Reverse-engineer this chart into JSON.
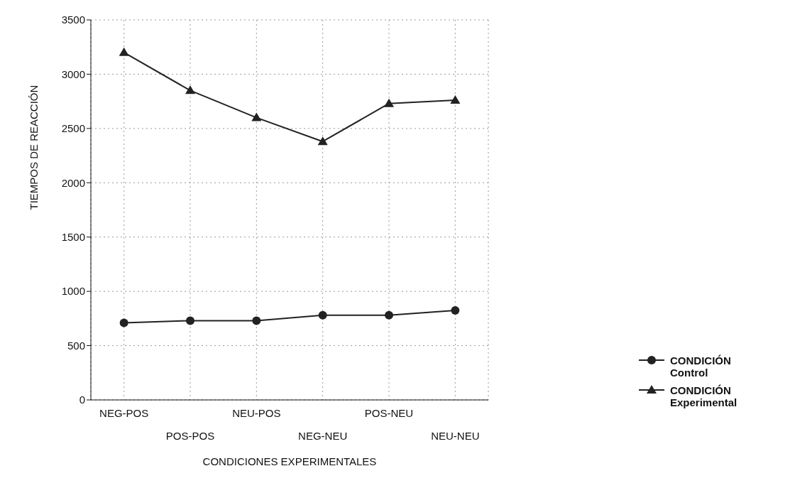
{
  "chart_data": {
    "type": "line",
    "xlabel": "CONDICIONES EXPERIMENTALES",
    "ylabel": "TIEMPOS DE REACCIÓN",
    "categories": [
      "NEG-POS",
      "POS-POS",
      "NEU-POS",
      "NEG-NEU",
      "POS-NEU",
      "NEU-NEU"
    ],
    "series": [
      {
        "name": "CONDICIÓN Control",
        "color": "#222222",
        "marker": "circle",
        "values": [
          710,
          730,
          730,
          780,
          780,
          825
        ]
      },
      {
        "name": "CONDICIÓN Experimental",
        "color": "#222222",
        "marker": "triangle",
        "values": [
          3200,
          2850,
          2600,
          2380,
          2730,
          2760
        ]
      }
    ],
    "ylim": [
      0,
      3500
    ],
    "yticks": [
      0,
      500,
      1000,
      1500,
      2000,
      2500,
      3000,
      3500
    ],
    "grid": true,
    "legend": "bottom right"
  }
}
